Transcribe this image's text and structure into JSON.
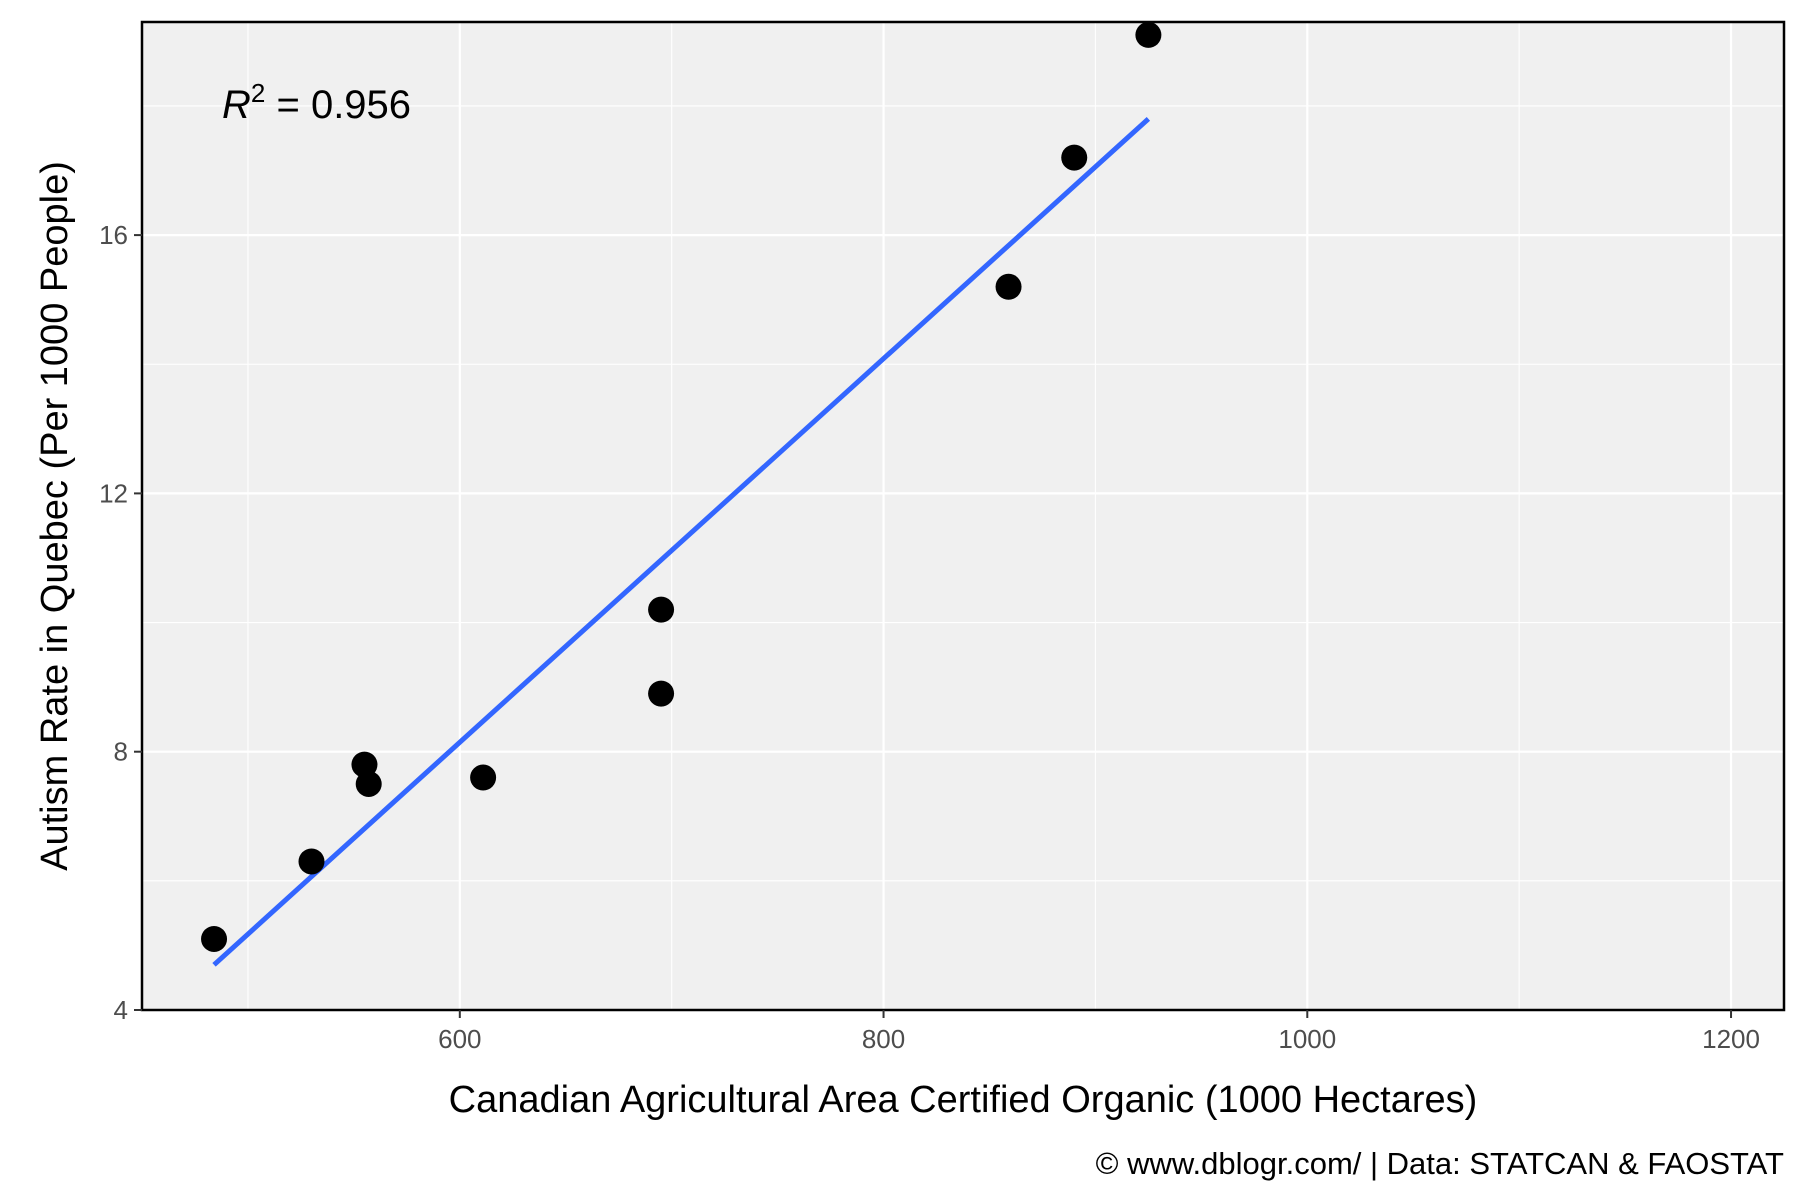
{
  "chart_data": {
    "type": "scatter",
    "xlabel": "Canadian Agricultural Area Certified Organic (1000 Hectares)",
    "ylabel": "Autism Rate in Quebec (Per 1000 People)",
    "xlim": [
      450,
      1225
    ],
    "ylim": [
      4,
      19.3
    ],
    "x_ticks": [
      600,
      800,
      1000,
      1200
    ],
    "y_ticks": [
      4,
      8,
      12,
      16
    ],
    "x_tick_labels": [
      "600",
      "800",
      "1000",
      "1200"
    ],
    "y_tick_labels": [
      "4",
      "8",
      "12",
      "16"
    ],
    "grid": true,
    "legend": "none",
    "points": [
      {
        "x": 484,
        "y": 5.1
      },
      {
        "x": 530,
        "y": 6.3
      },
      {
        "x": 555,
        "y": 7.8
      },
      {
        "x": 557,
        "y": 7.5
      },
      {
        "x": 611,
        "y": 7.6
      },
      {
        "x": 695,
        "y": 10.2
      },
      {
        "x": 695,
        "y": 8.9
      },
      {
        "x": 859,
        "y": 15.2
      },
      {
        "x": 890,
        "y": 17.2
      },
      {
        "x": 925,
        "y": 19.1
      }
    ],
    "trend_line": {
      "x": [
        484,
        925
      ],
      "y": [
        4.7,
        17.8
      ]
    },
    "annotation": {
      "base": "R",
      "superscript": "2",
      "text": " = 0.956"
    },
    "caption": "© www.dblogr.com/  |  Data: STATCAN & FAOSTAT",
    "colors": {
      "panel": "#f0f0f0",
      "points": "#000000",
      "trend": "#3366ff",
      "border": "#000000"
    }
  }
}
